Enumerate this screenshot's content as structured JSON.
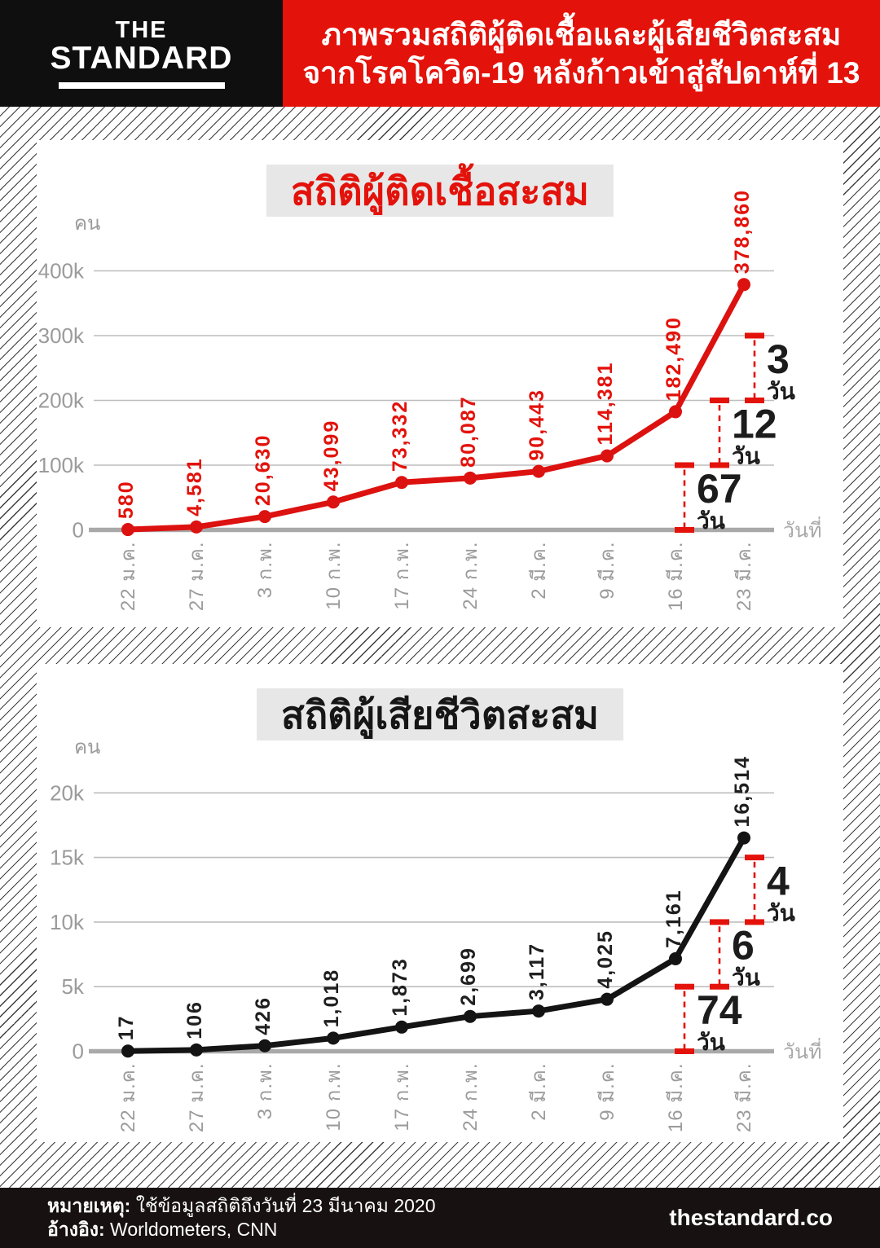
{
  "header": {
    "logo_line1": "THE",
    "logo_line2": "STANDARD",
    "title_line1": "ภาพรวมสถิติผู้ติดเชื้อและผู้เสียชีวิตสะสม",
    "title_line2": "จากโรคโควิด-19 หลังก้าวเข้าสู่สัปดาห์ที่ 13"
  },
  "colors": {
    "brand_red": "#e3120b",
    "annotation_red": "#e3120b",
    "annotation_text": "#1c1c1c",
    "grid": "#bdbdbd",
    "axis": "#a9a9a9",
    "tick_text": "#9b9b9b",
    "badge_bg": "#e7e7e7",
    "footer_bg": "#171111",
    "header_black": "#0f0f0f"
  },
  "chart_data": [
    {
      "type": "line",
      "title": "สถิติผู้ติดเชื้อสะสม",
      "unit_label": "คน",
      "x_axis_label": "วันที่",
      "categories": [
        "22 ม.ค.",
        "27 ม.ค.",
        "3 ก.พ.",
        "10 ก.พ.",
        "17 ก.พ.",
        "24 ก.พ.",
        "2 มี.ค.",
        "9 มี.ค.",
        "16 มี.ค.",
        "23 มี.ค."
      ],
      "values": [
        580,
        4581,
        20630,
        43099,
        73332,
        80087,
        90443,
        114381,
        182490,
        378860
      ],
      "value_labels": [
        "580",
        "4,581",
        "20,630",
        "43,099",
        "73,332",
        "80,087",
        "90,443",
        "114,381",
        "182,490",
        "378,860"
      ],
      "yticks": [
        {
          "value": 0,
          "label": "0"
        },
        {
          "value": 100000,
          "label": "100k"
        },
        {
          "value": 200000,
          "label": "200k"
        },
        {
          "value": 300000,
          "label": "300k"
        },
        {
          "value": 400000,
          "label": "400k"
        }
      ],
      "ylim": [
        0,
        450000
      ],
      "grid": true,
      "series_color": "#dc1210",
      "label_color": "#e3120b",
      "annotations": [
        {
          "from": 0,
          "to": 100000,
          "days": "67",
          "unit": "วัน"
        },
        {
          "from": 100000,
          "to": 200000,
          "days": "12",
          "unit": "วัน"
        },
        {
          "from": 200000,
          "to": 300000,
          "days": "3",
          "unit": "วัน"
        }
      ]
    },
    {
      "type": "line",
      "title": "สถิติผู้เสียชีวิตสะสม",
      "unit_label": "คน",
      "x_axis_label": "วันที่",
      "categories": [
        "22 ม.ค.",
        "27 ม.ค.",
        "3 ก.พ.",
        "10 ก.พ.",
        "17 ก.พ.",
        "24 ก.พ.",
        "2 มี.ค.",
        "9 มี.ค.",
        "16 มี.ค.",
        "23 มี.ค."
      ],
      "values": [
        17,
        106,
        426,
        1018,
        1873,
        2699,
        3117,
        4025,
        7161,
        16514
      ],
      "value_labels": [
        "17",
        "106",
        "426",
        "1,018",
        "1,873",
        "2,699",
        "3,117",
        "4,025",
        "7,161",
        "16,514"
      ],
      "yticks": [
        {
          "value": 0,
          "label": "0"
        },
        {
          "value": 5000,
          "label": "5k"
        },
        {
          "value": 10000,
          "label": "10k"
        },
        {
          "value": 15000,
          "label": "15k"
        },
        {
          "value": 20000,
          "label": "20k"
        }
      ],
      "ylim": [
        0,
        22500
      ],
      "grid": true,
      "series_color": "#141414",
      "label_color": "#1f1f1f",
      "annotations": [
        {
          "from": 0,
          "to": 5000,
          "days": "74",
          "unit": "วัน"
        },
        {
          "from": 5000,
          "to": 10000,
          "days": "6",
          "unit": "วัน"
        },
        {
          "from": 10000,
          "to": 15000,
          "days": "4",
          "unit": "วัน"
        }
      ]
    }
  ],
  "footer": {
    "note_label": "หมายเหตุ:",
    "note_text": " ใช้ข้อมูลสถิติถึงวันที่ 23 มีนาคม 2020",
    "ref_label": "อ้างอิง:",
    "ref_text": " Worldometers, CNN",
    "site": "thestandard.co"
  }
}
